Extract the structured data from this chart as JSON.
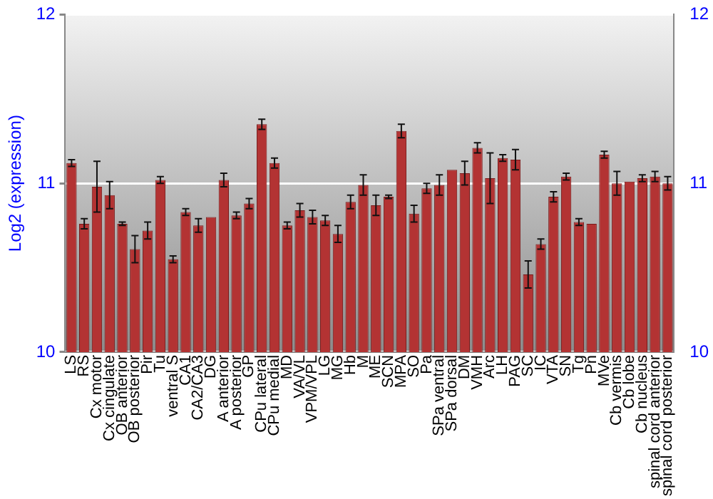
{
  "chart_data": {
    "type": "bar",
    "ylabel": "Log2 (expression)",
    "categories": [
      "LS",
      "RS",
      "Cx motor",
      "Cx cingulate",
      "OB anterior",
      "OB posterior",
      "Pir",
      "Tu",
      "ventral S",
      "CA1",
      "CA2/CA3",
      "DG",
      "A anterior",
      "A posterior",
      "GP",
      "CPu lateral",
      "CPu medial",
      "MD",
      "VA/VL",
      "VPM/VPL",
      "LG",
      "MG",
      "Hb",
      "M",
      "ME",
      "SCN",
      "MPA",
      "SO",
      "Pa",
      "SPa ventral",
      "SPa dorsal",
      "DM",
      "VMH",
      "Arc",
      "LH",
      "PAG",
      "SC",
      "IC",
      "VTA",
      "SN",
      "Tg",
      "Pn",
      "MVe",
      "Cb vermis",
      "Cb lobe",
      "Cb nucleus",
      "spinal cord anterior",
      "spinal cord posterior"
    ],
    "values": [
      11.12,
      10.76,
      10.98,
      10.93,
      10.76,
      10.61,
      10.72,
      11.02,
      10.55,
      10.83,
      10.75,
      10.8,
      11.02,
      10.81,
      10.88,
      11.35,
      11.12,
      10.75,
      10.84,
      10.8,
      10.78,
      10.7,
      10.89,
      10.99,
      10.87,
      10.92,
      11.31,
      10.82,
      10.97,
      10.99,
      11.08,
      11.06,
      11.21,
      11.03,
      11.15,
      11.14,
      10.46,
      10.64,
      10.92,
      11.04,
      10.77,
      10.76,
      11.17,
      11.0,
      11.01,
      11.03,
      11.04,
      11.0
    ],
    "errors": [
      0.02,
      0.03,
      0.15,
      0.08,
      0.01,
      0.08,
      0.05,
      0.02,
      0.02,
      0.02,
      0.04,
      null,
      0.04,
      0.02,
      0.03,
      0.03,
      0.03,
      0.02,
      0.04,
      0.04,
      0.03,
      0.05,
      0.04,
      0.06,
      0.06,
      0.01,
      0.04,
      0.05,
      0.03,
      0.06,
      null,
      0.07,
      0.03,
      0.15,
      0.02,
      0.06,
      0.08,
      0.03,
      0.03,
      0.02,
      0.02,
      null,
      0.02,
      0.07,
      null,
      0.02,
      0.03,
      0.04
    ],
    "color": "#b33333",
    "ylim": [
      10,
      12
    ],
    "yticks": [
      10,
      11,
      12
    ],
    "y2lim": [
      10,
      12
    ],
    "y2ticks": [
      10,
      11,
      12
    ],
    "grid": "y"
  }
}
